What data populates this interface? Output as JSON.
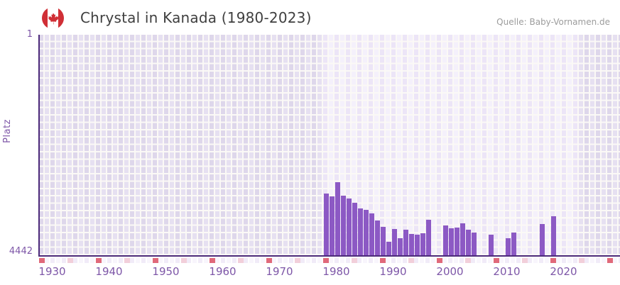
{
  "header": {
    "title": "Chrystal in Kanada (1980-2023)",
    "flag_icon": "canada-flag-icon"
  },
  "source": {
    "label": "Quelle: Baby-Vornamen.de"
  },
  "y_axis": {
    "label": "Platz",
    "top_tick": "1",
    "bottom_tick": "4442"
  },
  "chart_data": {
    "type": "bar",
    "title": "Chrystal in Kanada (1980-2023)",
    "xlabel": "",
    "ylabel": "Platz",
    "y_inverted": true,
    "ylim": [
      1,
      4442
    ],
    "grid": true,
    "legend_position": "none",
    "x_ticks": [
      1930,
      1940,
      1950,
      1960,
      1970,
      1980,
      1990,
      2000,
      2010,
      2020
    ],
    "data_band_years": {
      "start": 1978,
      "end": 2022
    },
    "series": [
      {
        "name": "Platz",
        "points": [
          {
            "year": 1978,
            "rank": 3195
          },
          {
            "year": 1979,
            "rank": 3250
          },
          {
            "year": 1980,
            "rank": 2975
          },
          {
            "year": 1981,
            "rank": 3240
          },
          {
            "year": 1982,
            "rank": 3295
          },
          {
            "year": 1983,
            "rank": 3380
          },
          {
            "year": 1984,
            "rank": 3495
          },
          {
            "year": 1985,
            "rank": 3535
          },
          {
            "year": 1986,
            "rank": 3605
          },
          {
            "year": 1987,
            "rank": 3745
          },
          {
            "year": 1988,
            "rank": 3865
          },
          {
            "year": 1989,
            "rank": 4165
          },
          {
            "year": 1990,
            "rank": 3910
          },
          {
            "year": 1991,
            "rank": 4095
          },
          {
            "year": 1992,
            "rank": 3935
          },
          {
            "year": 1993,
            "rank": 4020
          },
          {
            "year": 1994,
            "rank": 4035
          },
          {
            "year": 1995,
            "rank": 3995
          },
          {
            "year": 1996,
            "rank": 3735
          },
          {
            "year": 1999,
            "rank": 3845
          },
          {
            "year": 2000,
            "rank": 3895
          },
          {
            "year": 2001,
            "rank": 3890
          },
          {
            "year": 2002,
            "rank": 3805
          },
          {
            "year": 2003,
            "rank": 3930
          },
          {
            "year": 2004,
            "rank": 3985
          },
          {
            "year": 2007,
            "rank": 4035
          },
          {
            "year": 2010,
            "rank": 4105
          },
          {
            "year": 2011,
            "rank": 3980
          },
          {
            "year": 2016,
            "rank": 3820
          },
          {
            "year": 2018,
            "rank": 3660
          }
        ]
      }
    ],
    "timeline_markers": {
      "red_years": [
        1928,
        1938,
        1948,
        1958,
        1968,
        1978,
        1988,
        1998,
        2008,
        2018,
        2028
      ],
      "pink_years": [
        1933,
        1943,
        1953,
        1963,
        1973,
        1983,
        1993,
        2003,
        2013,
        2023
      ]
    }
  },
  "colors": {
    "bar": "#8c59c4",
    "axis": "#4c2a7a",
    "tick_text": "#7e57a8",
    "title_text": "#3f3f3f",
    "source_text": "#9c9c9c",
    "marker_red": "#e0697a",
    "marker_pink": "#f2cfda",
    "grid_outer_a": "#ded7eb",
    "grid_outer_b": "#e6e0f1",
    "grid_inner_a": "#ece5f7",
    "grid_inner_b": "#f4f0fb",
    "gridline": "#fbf9f6",
    "strip_a": "#f1ebf8",
    "strip_b": "#f8f5fc",
    "flag_red": "#d02f36"
  }
}
